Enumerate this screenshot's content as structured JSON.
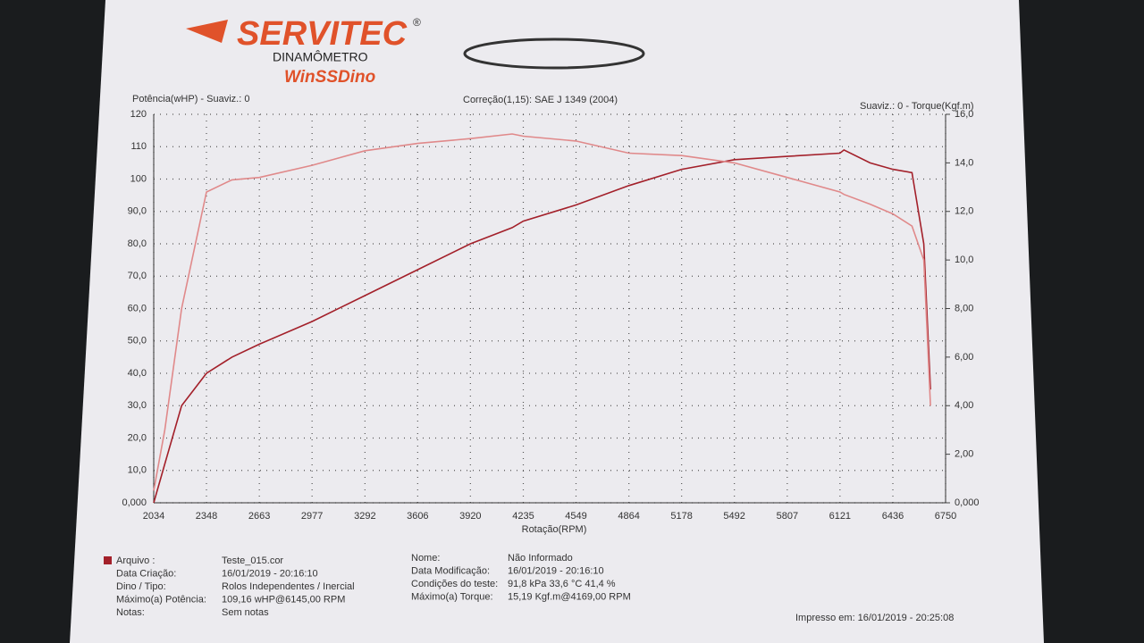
{
  "header": {
    "brand": "SERVITEC",
    "registered": "®",
    "subtitle": "DINAMÔMETRO",
    "software": "WinSSDino"
  },
  "chart_data": {
    "type": "line",
    "y_label": "Potência(wHP) - Suaviz.: 0",
    "title": "Correção(1,15): SAE J 1349 (2004)",
    "y2_label": "Suaviz.: 0 - Torque(Kgf.m)",
    "x_label": "Rotação(RPM)",
    "x": [
      2034,
      2100,
      2200,
      2348,
      2500,
      2663,
      2977,
      3292,
      3606,
      3920,
      4169,
      4235,
      4549,
      4864,
      5178,
      5492,
      5807,
      6121,
      6145,
      6300,
      6436,
      6550,
      6620,
      6660
    ],
    "series": [
      {
        "color": "#a3202a",
        "values": [
          0,
          12,
          30,
          40,
          45,
          49,
          56,
          64,
          72,
          80,
          85,
          87,
          92,
          98,
          103,
          106,
          107,
          108,
          109,
          105,
          103,
          102,
          80,
          35
        ]
      },
      {
        "color": "#e0898a",
        "axis": "y2",
        "values": [
          0.5,
          3,
          8,
          12.8,
          13.3,
          13.4,
          13.9,
          14.5,
          14.8,
          15.0,
          15.19,
          15.1,
          14.9,
          14.4,
          14.3,
          14.0,
          13.4,
          12.8,
          12.7,
          12.3,
          11.9,
          11.4,
          10,
          4
        ]
      }
    ],
    "xlim": [
      2034,
      6750
    ],
    "xticks": [
      2034,
      2348,
      2663,
      2977,
      3292,
      3606,
      3920,
      4235,
      4549,
      4864,
      5178,
      5492,
      5807,
      6121,
      6436,
      6750
    ],
    "ylim": [
      0,
      120
    ],
    "yticks": [
      {
        "value": 0,
        "label": "0,000"
      },
      {
        "value": 10,
        "label": "10,0"
      },
      {
        "value": 20,
        "label": "20,0"
      },
      {
        "value": 30,
        "label": "30,0"
      },
      {
        "value": 40,
        "label": "40,0"
      },
      {
        "value": 50,
        "label": "50,0"
      },
      {
        "value": 60,
        "label": "60,0"
      },
      {
        "value": 70,
        "label": "70,0"
      },
      {
        "value": 80,
        "label": "80,0"
      },
      {
        "value": 90,
        "label": "90,0"
      },
      100,
      110,
      120
    ],
    "y2lim": [
      0,
      16
    ],
    "y2ticks": [
      {
        "value": 0,
        "label": "0,000"
      },
      {
        "value": 2,
        "label": "2,00"
      },
      {
        "value": 4,
        "label": "4,00"
      },
      {
        "value": 6,
        "label": "6,00"
      },
      {
        "value": 8,
        "label": "8,00"
      },
      {
        "value": 10,
        "label": "10,0"
      },
      {
        "value": 12,
        "label": "12,0"
      },
      {
        "value": 14,
        "label": "14,0"
      },
      {
        "value": 16,
        "label": "16,0"
      }
    ],
    "grid": true
  },
  "info": {
    "left": [
      {
        "label": "Arquivo    :",
        "value": "Teste_015.cor"
      },
      {
        "label": "Data Criação:",
        "value": "16/01/2019 - 20:16:10"
      },
      {
        "label": "Dino / Tipo:",
        "value": "Rolos Independentes  /  Inercial"
      },
      {
        "label": "Máximo(a) Potência:",
        "value": "109,16 wHP@6145,00 RPM"
      },
      {
        "label": "Notas:",
        "value": "Sem notas"
      }
    ],
    "right": [
      {
        "label": "Nome:",
        "value": "Não Informado"
      },
      {
        "label": "Data Modificação:",
        "value": "16/01/2019 - 20:16:10"
      },
      {
        "label": "Condições do teste:",
        "value": "91,8  kPa  33,6  °C  41,4 %"
      },
      {
        "label": "Máximo(a) Torque:",
        "value": "15,19 Kgf.m@4169,00 RPM"
      }
    ],
    "printed": "Impresso em: 16/01/2019 - 20:25:08"
  }
}
